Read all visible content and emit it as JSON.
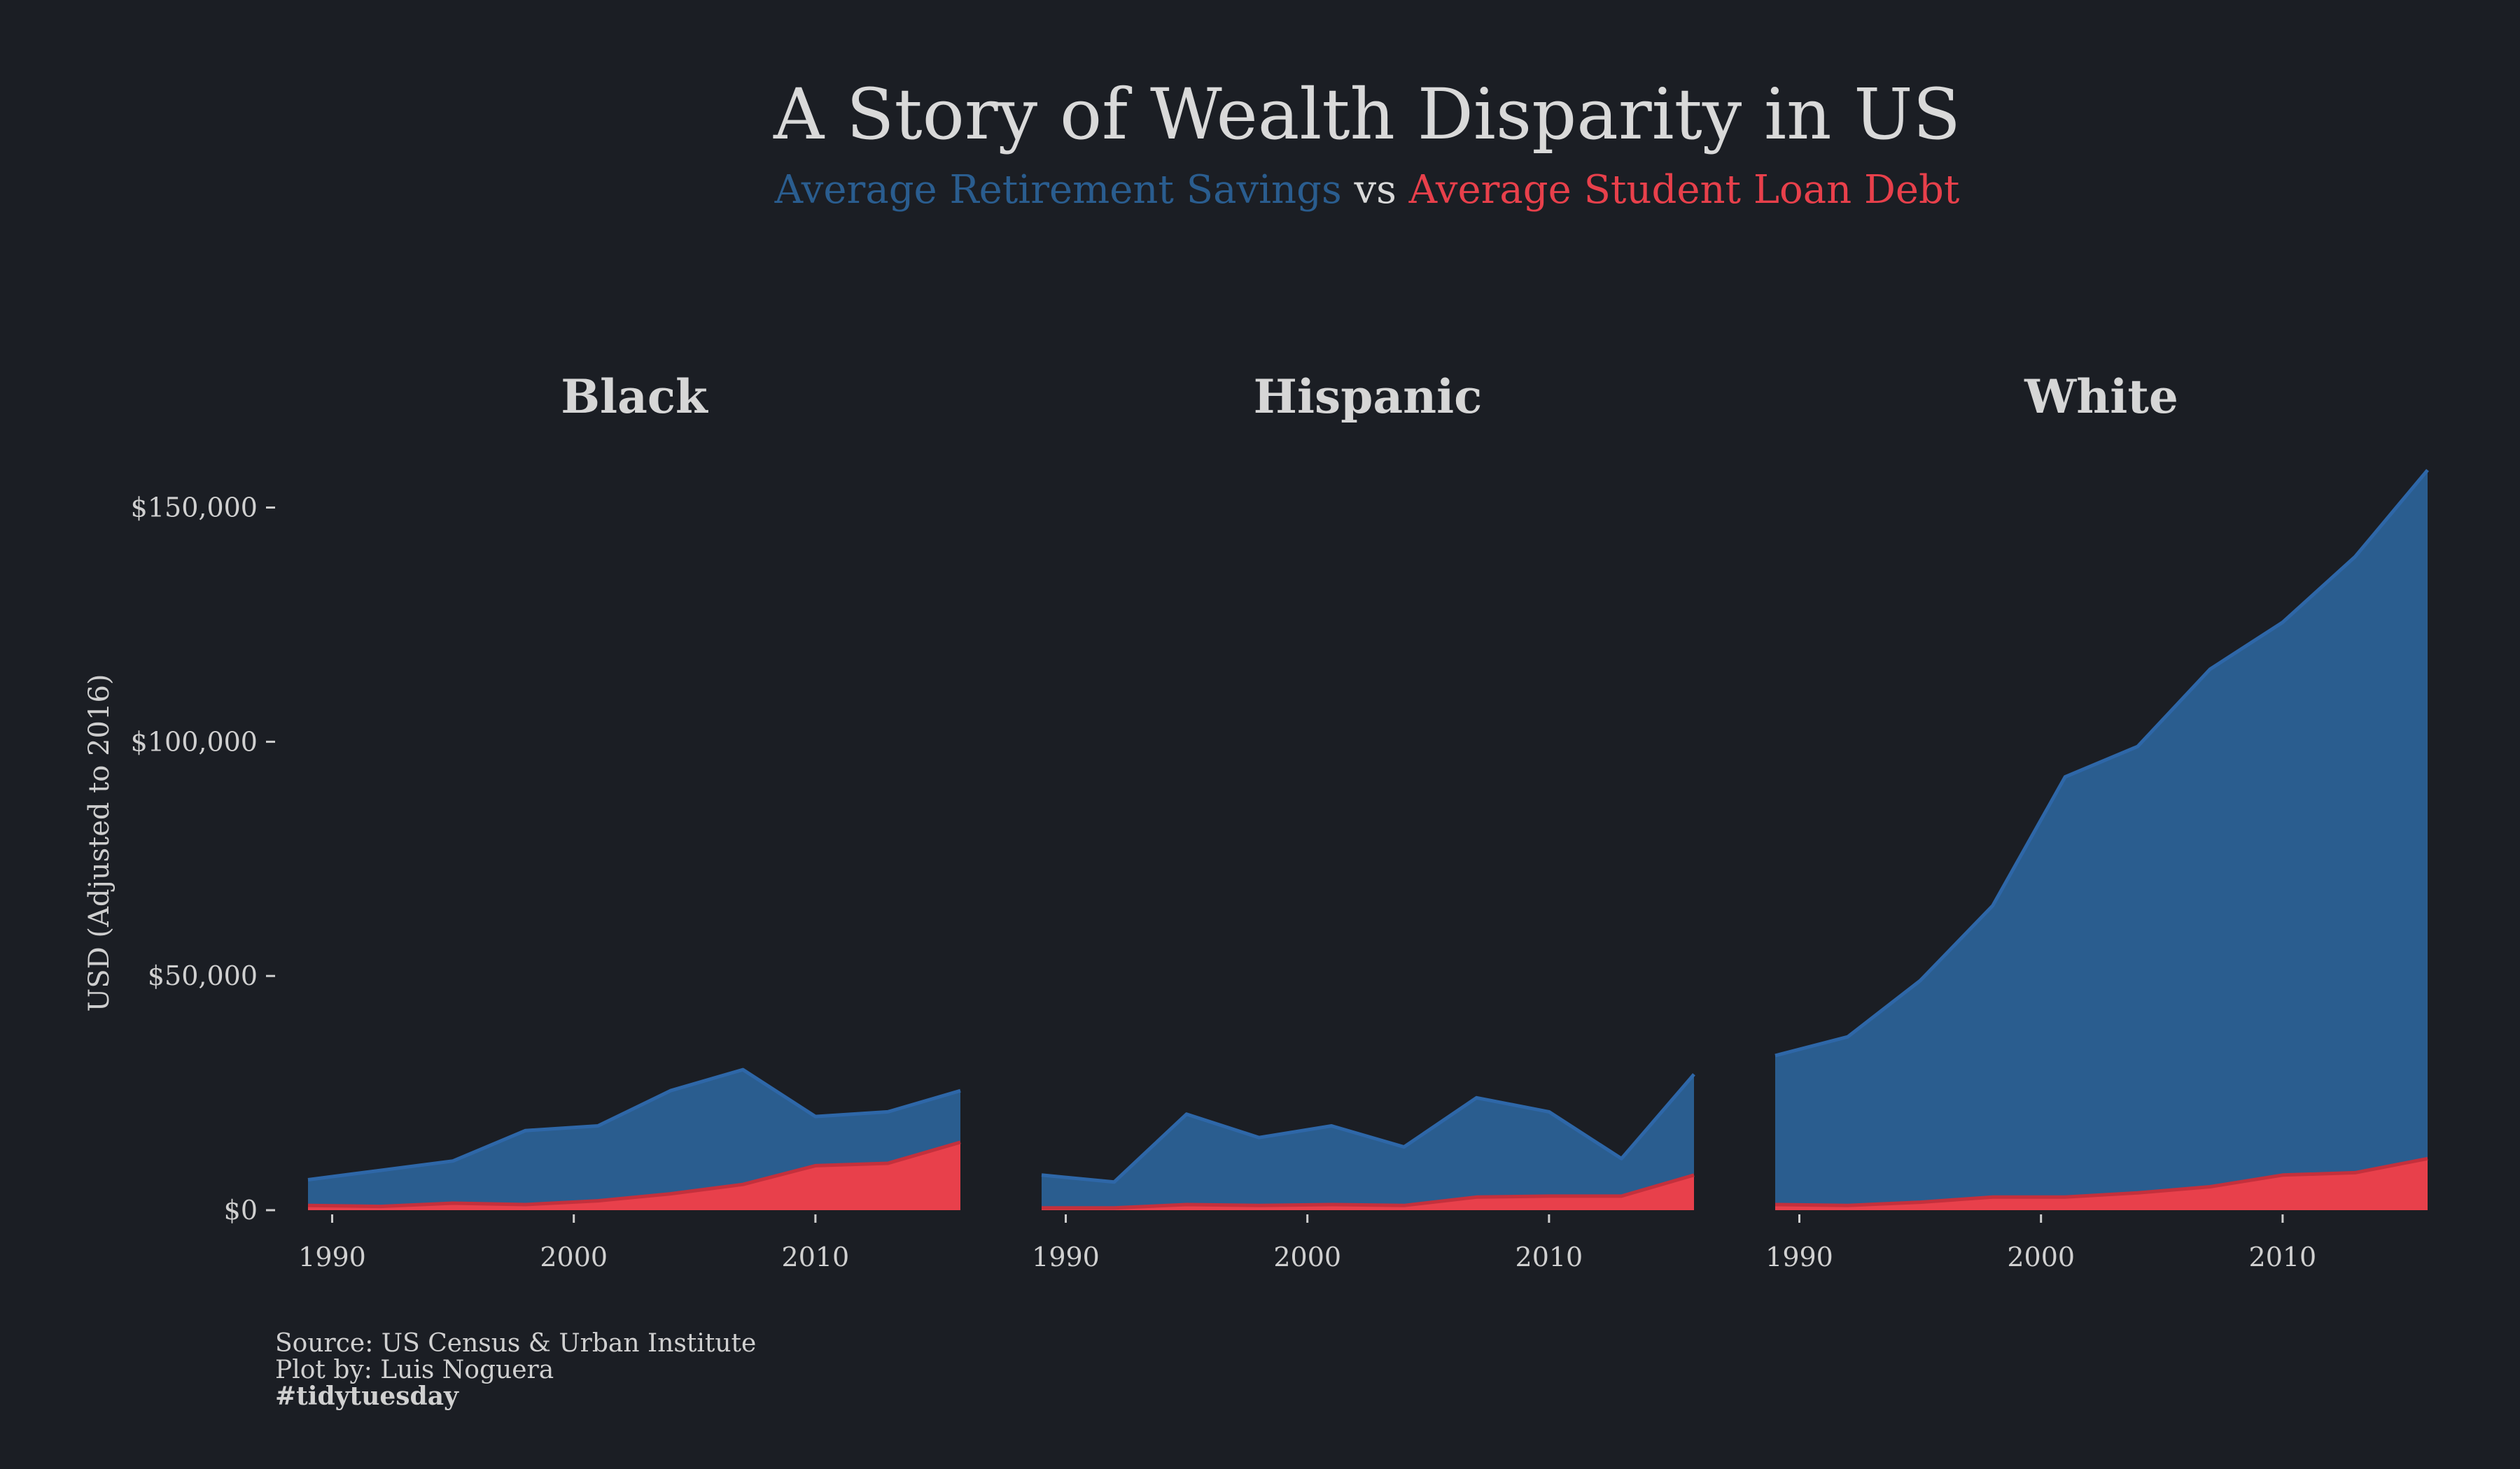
{
  "title": "A Story of Wealth Disparity in US",
  "subtitle": {
    "part1": "Average Retirement Savings",
    "part2": " vs ",
    "part3": "Average Student Loan Debt"
  },
  "colors": {
    "background": "#1b1e24",
    "retirement": "#2a5d8f",
    "retirement_line": "#2e67a8",
    "loan": "#e8404b",
    "loan_line": "#c4303c"
  },
  "caption": {
    "line1": "Source: US Census & Urban Institute",
    "line2": "Plot by: Luis Noguera",
    "line3": "#tidytuesday"
  },
  "chart_data": {
    "type": "area",
    "ylabel": "USD (Adjusted to 2016)",
    "y_ticks": [
      0,
      50000,
      100000,
      150000
    ],
    "y_tick_labels": [
      "$0",
      "$50,000",
      "$100,000",
      "$150,000"
    ],
    "x_ticks": [
      1990,
      2000,
      2010
    ],
    "x_tick_labels": [
      "1990",
      "2000",
      "2010"
    ],
    "xlim": [
      1989,
      2016
    ],
    "ylim": [
      0,
      158000
    ],
    "grid": false,
    "x": [
      1989,
      1992,
      1995,
      1998,
      2001,
      2004,
      2007,
      2010,
      2013,
      2016
    ],
    "facets": [
      {
        "name": "Black",
        "series": [
          {
            "name": "Average Retirement Savings",
            "values": [
              6500,
              8500,
              10500,
              17000,
              18000,
              25500,
              30000,
              20000,
              21000,
              25500
            ]
          },
          {
            "name": "Average Student Loan Debt",
            "values": [
              1000,
              800,
              1500,
              1200,
              2000,
              3500,
              5500,
              9500,
              10000,
              14500
            ]
          }
        ]
      },
      {
        "name": "Hispanic",
        "series": [
          {
            "name": "Average Retirement Savings",
            "values": [
              7500,
              6000,
              20500,
              15500,
              18000,
              13500,
              24000,
              21000,
              11000,
              29000
            ]
          },
          {
            "name": "Average Student Loan Debt",
            "values": [
              500,
              500,
              1200,
              1000,
              1200,
              1000,
              2800,
              3000,
              3000,
              7500
            ]
          }
        ]
      },
      {
        "name": "White",
        "series": [
          {
            "name": "Average Retirement Savings",
            "values": [
              33000,
              37000,
              49000,
              65000,
              92500,
              99000,
              115500,
              125500,
              139500,
              158000
            ]
          },
          {
            "name": "Average Student Loan Debt",
            "values": [
              1200,
              1000,
              1700,
              2800,
              2800,
              3700,
              5000,
              7500,
              8000,
              11000
            ]
          }
        ]
      }
    ]
  }
}
